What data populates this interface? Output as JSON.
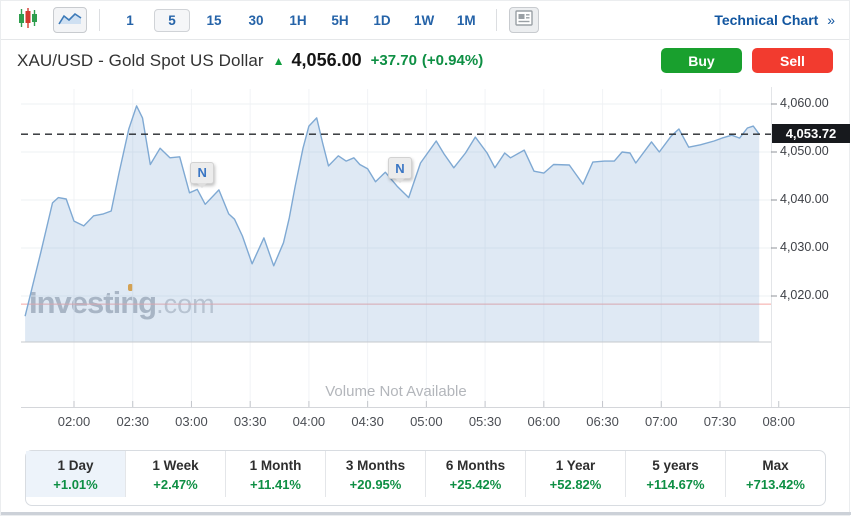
{
  "toolbar": {
    "chart_type_buttons": [
      {
        "icon": "candlestick-chart-icon",
        "selected": false
      },
      {
        "icon": "area-chart-icon",
        "selected": true
      }
    ],
    "timeframes": [
      {
        "label": "1",
        "selected": false
      },
      {
        "label": "5",
        "selected": true
      },
      {
        "label": "15",
        "selected": false
      },
      {
        "label": "30",
        "selected": false
      },
      {
        "label": "1H",
        "selected": false
      },
      {
        "label": "5H",
        "selected": false
      },
      {
        "label": "1D",
        "selected": false
      },
      {
        "label": "1W",
        "selected": false
      },
      {
        "label": "1M",
        "selected": false
      }
    ],
    "news_panel_icon": "news-panel-icon",
    "technical_chart_label": "Technical Chart",
    "technical_chart_chevron": "»"
  },
  "header": {
    "title": "XAU/USD - Gold Spot US Dollar",
    "arrow": "▲",
    "price": "4,056.00",
    "change": "+37.70",
    "change_pct": "(+0.94%)",
    "buy_label": "Buy",
    "sell_label": "Sell"
  },
  "chart_data": {
    "type": "area",
    "instrument": "XAU/USD - Gold Spot US Dollar",
    "interval": "5 minutes",
    "x_ticks": [
      "02:00",
      "02:30",
      "03:00",
      "03:30",
      "04:00",
      "04:30",
      "05:00",
      "05:30",
      "06:00",
      "06:30",
      "07:00",
      "07:30",
      "08:00"
    ],
    "y_ticks": [
      4020,
      4030,
      4040,
      4050,
      4060
    ],
    "y_tick_labels": [
      "4,020.00",
      "4,030.00",
      "4,040.00",
      "4,050.00",
      "4,060.00"
    ],
    "ylim": [
      4010.4,
      4063.1
    ],
    "x_domain": [
      "01:33",
      "07:56"
    ],
    "grid": true,
    "current_price": 4053.72,
    "current_price_label": "4,053.72",
    "previous_close": 4018.3,
    "series": [
      {
        "name": "XAU/USD",
        "points": [
          [
            "01:35",
            4015.8
          ],
          [
            "01:43",
            4029.0
          ],
          [
            "01:49",
            4039.4
          ],
          [
            "01:52",
            4040.5
          ],
          [
            "01:56",
            4040.2
          ],
          [
            "02:00",
            4035.6
          ],
          [
            "02:05",
            4034.6
          ],
          [
            "02:10",
            4036.7
          ],
          [
            "02:15",
            4037.1
          ],
          [
            "02:19",
            4037.7
          ],
          [
            "02:23",
            4045.6
          ],
          [
            "02:28",
            4054.8
          ],
          [
            "02:32",
            4059.6
          ],
          [
            "02:35",
            4057.1
          ],
          [
            "02:39",
            4047.4
          ],
          [
            "02:44",
            4050.8
          ],
          [
            "02:49",
            4048.8
          ],
          [
            "02:54",
            4049.0
          ],
          [
            "02:59",
            4041.5
          ],
          [
            "03:03",
            4042.2
          ],
          [
            "03:07",
            4039.1
          ],
          [
            "03:14",
            4042.1
          ],
          [
            "03:19",
            4037.1
          ],
          [
            "03:22",
            4036.0
          ],
          [
            "03:26",
            4032.5
          ],
          [
            "03:31",
            4026.7
          ],
          [
            "03:37",
            4032.1
          ],
          [
            "03:42",
            4026.3
          ],
          [
            "03:47",
            4031.1
          ],
          [
            "03:50",
            4036.3
          ],
          [
            "03:53",
            4042.9
          ],
          [
            "03:57",
            4050.8
          ],
          [
            "04:00",
            4055.4
          ],
          [
            "04:04",
            4057.1
          ],
          [
            "04:07",
            4051.9
          ],
          [
            "04:10",
            4047.1
          ],
          [
            "04:15",
            4049.2
          ],
          [
            "04:19",
            4048.1
          ],
          [
            "04:23",
            4048.8
          ],
          [
            "04:26",
            4047.4
          ],
          [
            "04:30",
            4046.5
          ],
          [
            "04:34",
            4043.8
          ],
          [
            "04:39",
            4045.8
          ],
          [
            "04:45",
            4042.9
          ],
          [
            "04:51",
            4040.5
          ],
          [
            "04:57",
            4047.7
          ],
          [
            "05:05",
            4052.3
          ],
          [
            "05:09",
            4049.6
          ],
          [
            "05:14",
            4046.7
          ],
          [
            "05:20",
            4049.8
          ],
          [
            "05:25",
            4053.1
          ],
          [
            "05:31",
            4049.8
          ],
          [
            "05:35",
            4046.7
          ],
          [
            "05:40",
            4049.8
          ],
          [
            "05:43",
            4048.8
          ],
          [
            "05:50",
            4050.4
          ],
          [
            "05:55",
            4046.0
          ],
          [
            "06:00",
            4045.6
          ],
          [
            "06:05",
            4047.4
          ],
          [
            "06:13",
            4047.3
          ],
          [
            "06:16",
            4045.6
          ],
          [
            "06:20",
            4043.3
          ],
          [
            "06:25",
            4047.9
          ],
          [
            "06:31",
            4048.1
          ],
          [
            "06:36",
            4048.1
          ],
          [
            "06:40",
            4050.0
          ],
          [
            "06:44",
            4049.8
          ],
          [
            "06:47",
            4047.7
          ],
          [
            "06:55",
            4052.1
          ],
          [
            "06:59",
            4050.0
          ],
          [
            "07:05",
            4053.3
          ],
          [
            "07:09",
            4054.8
          ],
          [
            "07:14",
            4051.0
          ],
          [
            "07:20",
            4051.5
          ],
          [
            "07:27",
            4052.3
          ],
          [
            "07:31",
            4052.9
          ],
          [
            "07:36",
            4053.5
          ],
          [
            "07:40",
            4052.9
          ],
          [
            "07:44",
            4055.0
          ],
          [
            "07:47",
            4055.4
          ],
          [
            "07:50",
            4053.7
          ]
        ]
      }
    ],
    "news_markers": [
      {
        "label": "N",
        "t": "03:05",
        "p": 4042.3
      },
      {
        "label": "N",
        "t": "04:46",
        "p": 4043.3
      }
    ],
    "volume_note": "Volume Not Available",
    "watermark": {
      "bold": "Investing",
      "light": ".com"
    },
    "legend_position": "none"
  },
  "footer": {
    "tabs": [
      {
        "label": "1 Day",
        "pct": "+1.01%",
        "selected": true
      },
      {
        "label": "1 Week",
        "pct": "+2.47%",
        "selected": false
      },
      {
        "label": "1 Month",
        "pct": "+11.41%",
        "selected": false
      },
      {
        "label": "3 Months",
        "pct": "+20.95%",
        "selected": false
      },
      {
        "label": "6 Months",
        "pct": "+25.42%",
        "selected": false
      },
      {
        "label": "1 Year",
        "pct": "+52.82%",
        "selected": false
      },
      {
        "label": "5 years",
        "pct": "+114.67%",
        "selected": false
      },
      {
        "label": "Max",
        "pct": "+713.42%",
        "selected": false
      }
    ]
  },
  "colors": {
    "accent_blue": "#1256a0",
    "timeframe_blue": "#2563a8",
    "green_text": "#0e8f44",
    "buy_green": "#19a02e",
    "sell_red": "#f23b2f",
    "line_blue": "#7fa9d3",
    "fill_blue": "rgba(127,169,211,0.25)",
    "prev_close_red": "#f5a8a5",
    "current_price_dash": "#26282c",
    "badge_bg": "#17191d",
    "selected_tab_bg": "#edf3fa",
    "news_marker_letter": "#3a76c4",
    "watermark_gray": "#b6bac0",
    "watermark_accent_orange": "#f0a028"
  }
}
